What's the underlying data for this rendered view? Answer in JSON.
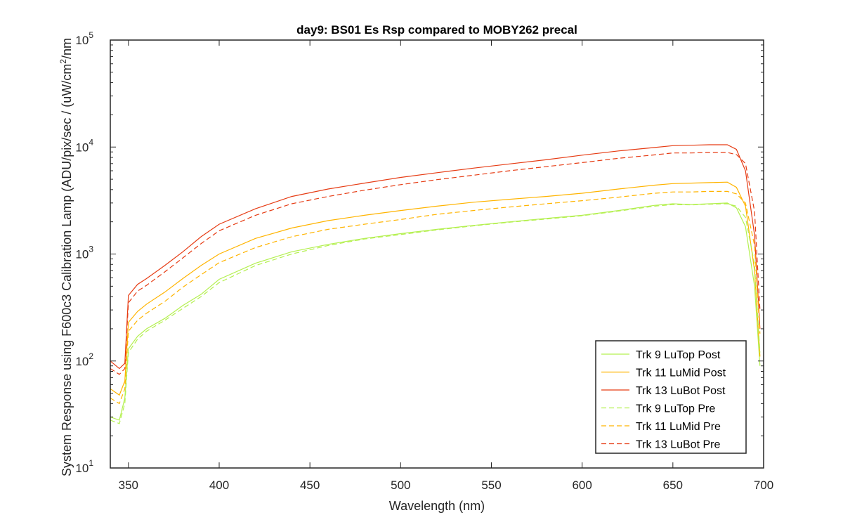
{
  "chart_data": {
    "type": "line",
    "title": "day9: BS01 Es Rsp compared to MOBY262 precal",
    "xlabel": "Wavelength (nm)",
    "ylabel_main": "System Response using F600c3 Calibration Lamp  (ADU/pix/sec / (uW/cm",
    "ylabel_sup": "2",
    "ylabel_tail": "/nm",
    "xlim": [
      340,
      700
    ],
    "ylim": [
      10,
      100000
    ],
    "yscale": "log",
    "grid": false,
    "legend_position": "bottom-right",
    "x_ticks": [
      "350",
      "400",
      "450",
      "500",
      "550",
      "600",
      "650",
      "700"
    ],
    "y_ticks": [
      {
        "base": "10",
        "exp": "1"
      },
      {
        "base": "10",
        "exp": "2"
      },
      {
        "base": "10",
        "exp": "3"
      },
      {
        "base": "10",
        "exp": "4"
      },
      {
        "base": "10",
        "exp": "5"
      }
    ],
    "x": [
      340,
      345,
      348,
      350,
      355,
      360,
      370,
      380,
      390,
      400,
      420,
      440,
      460,
      480,
      500,
      520,
      540,
      560,
      580,
      600,
      620,
      640,
      650,
      660,
      670,
      680,
      685,
      690,
      695,
      698
    ],
    "series": [
      {
        "name": "Trk 9 LuTop Post",
        "color": "#b4f050",
        "style": "solid",
        "values": [
          30,
          28,
          45,
          130,
          170,
          200,
          250,
          330,
          420,
          580,
          820,
          1050,
          1230,
          1400,
          1550,
          1700,
          1850,
          2000,
          2150,
          2300,
          2550,
          2850,
          2950,
          2900,
          2950,
          3000,
          2700,
          1800,
          500,
          90
        ]
      },
      {
        "name": "Trk 11 LuMid Post",
        "color": "#ffb400",
        "style": "solid",
        "values": [
          55,
          48,
          65,
          230,
          290,
          340,
          440,
          590,
          780,
          1000,
          1400,
          1750,
          2050,
          2300,
          2550,
          2800,
          3050,
          3250,
          3450,
          3700,
          4050,
          4400,
          4550,
          4600,
          4650,
          4700,
          4200,
          2800,
          700,
          110
        ]
      },
      {
        "name": "Trk 13 LuBot Post",
        "color": "#e63c14",
        "style": "solid",
        "values": [
          100,
          85,
          95,
          410,
          520,
          590,
          780,
          1050,
          1450,
          1900,
          2650,
          3450,
          4050,
          4600,
          5200,
          5750,
          6350,
          6950,
          7600,
          8400,
          9200,
          9900,
          10300,
          10400,
          10500,
          10500,
          9500,
          6000,
          1500,
          200
        ]
      },
      {
        "name": "Trk 9 LuTop Pre",
        "color": "#b4f050",
        "style": "dashed",
        "values": [
          28,
          26,
          40,
          120,
          160,
          190,
          240,
          310,
          400,
          540,
          780,
          1000,
          1200,
          1380,
          1520,
          1680,
          1830,
          1980,
          2120,
          2280,
          2520,
          2800,
          2900,
          2880,
          2920,
          2950,
          2800,
          2200,
          800,
          120
        ]
      },
      {
        "name": "Trk 11 LuMid Pre",
        "color": "#ffb400",
        "style": "dashed",
        "values": [
          45,
          40,
          55,
          190,
          240,
          280,
          360,
          490,
          640,
          830,
          1150,
          1450,
          1700,
          1900,
          2100,
          2350,
          2550,
          2750,
          2950,
          3150,
          3400,
          3700,
          3800,
          3800,
          3850,
          3850,
          3650,
          3000,
          1200,
          180
        ]
      },
      {
        "name": "Trk 13 LuBot Pre",
        "color": "#e63c14",
        "style": "dashed",
        "values": [
          85,
          75,
          85,
          350,
          450,
          510,
          680,
          920,
          1250,
          1650,
          2300,
          2950,
          3450,
          3950,
          4450,
          4950,
          5450,
          6000,
          6550,
          7150,
          7850,
          8450,
          8800,
          8800,
          8900,
          8900,
          8500,
          7000,
          2500,
          300
        ]
      }
    ]
  }
}
